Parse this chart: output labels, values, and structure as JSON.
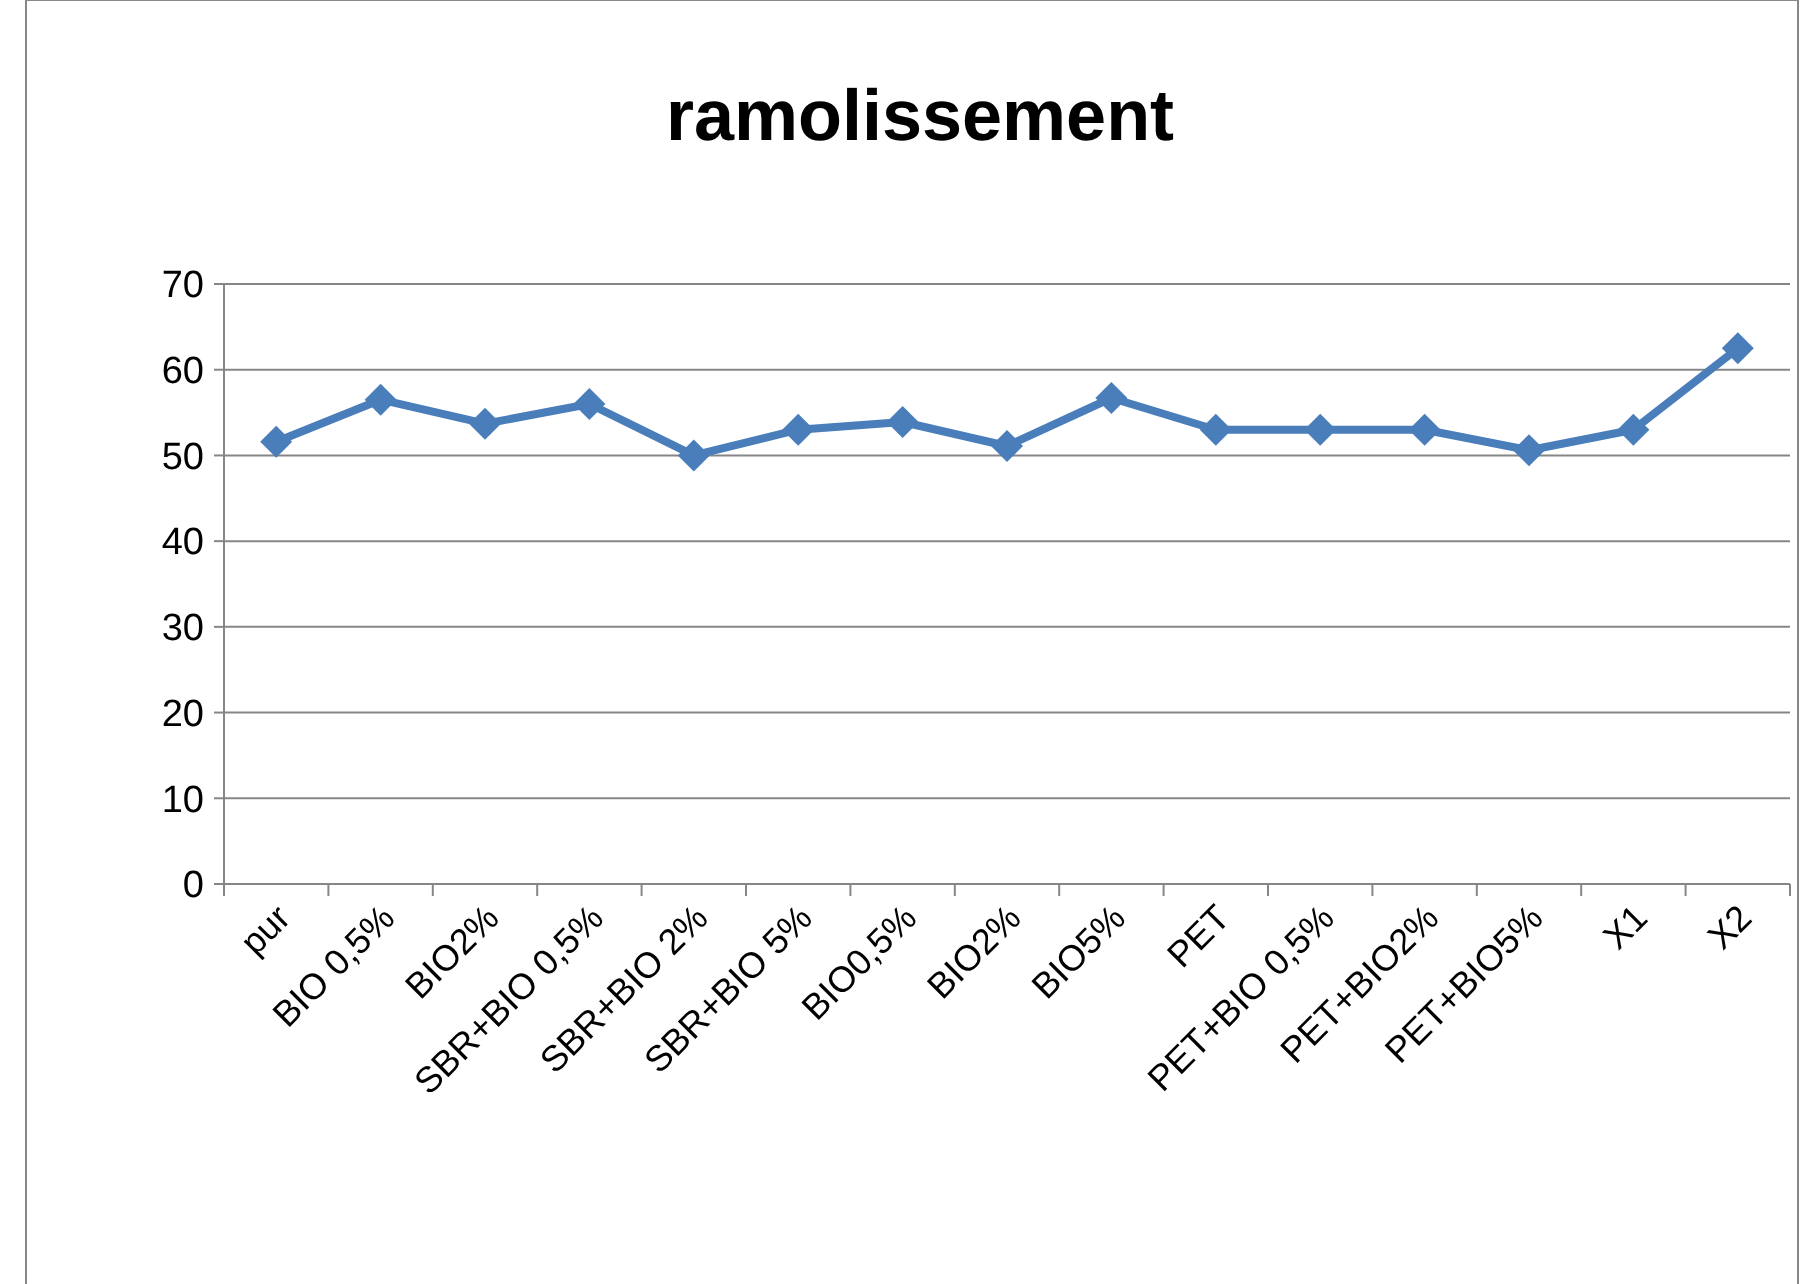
{
  "chart_data": {
    "type": "line",
    "title": "ramolissement",
    "categories": [
      "pur",
      "BIO 0,5%",
      "BIO2%",
      "SBR+BIO 0,5%",
      "SBR+BIO 2%",
      "SBR+BIO 5%",
      "BIO0,5%",
      "BIO2%",
      "BIO5%",
      "PET",
      "PET+BIO 0,5%",
      "PET+BIO2%",
      "PET+BIO5%",
      "X1",
      "X2"
    ],
    "series": [
      {
        "color": "#4a7ebb",
        "values": [
          51.6,
          56.5,
          53.7,
          56,
          50,
          53,
          53.9,
          51.1,
          56.7,
          53,
          53,
          53,
          50.6,
          53,
          62.5
        ]
      }
    ],
    "ylim": [
      0,
      70
    ],
    "yticks": [
      0,
      10,
      20,
      30,
      40,
      50,
      60,
      70
    ],
    "grid": "y",
    "marker": "diamond",
    "line_style": "solid"
  }
}
